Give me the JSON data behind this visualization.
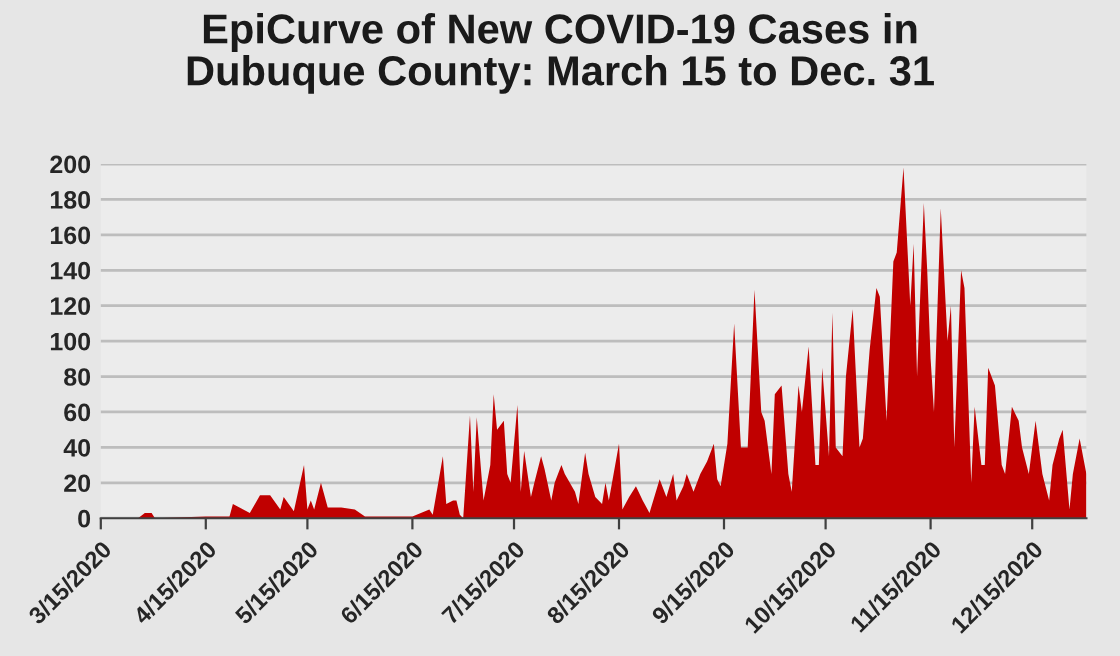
{
  "chart_data": {
    "type": "area",
    "title": "EpiCurve of New COVID-19 Cases in\nDubuque County: March 15 to Dec. 31",
    "series": [
      {
        "color": "#c00000",
        "x": [
          "2020-03-15",
          "2020-03-26",
          "2020-03-28",
          "2020-03-30",
          "2020-03-31",
          "2020-04-15",
          "2020-04-22",
          "2020-04-23",
          "2020-04-28",
          "2020-05-01",
          "2020-05-04",
          "2020-05-07",
          "2020-05-08",
          "2020-05-11",
          "2020-05-14",
          "2020-05-15",
          "2020-05-16",
          "2020-05-17",
          "2020-05-19",
          "2020-05-21",
          "2020-05-25",
          "2020-05-29",
          "2020-06-01",
          "2020-06-15",
          "2020-06-20",
          "2020-06-21",
          "2020-06-24",
          "2020-06-25",
          "2020-06-27",
          "2020-06-28",
          "2020-06-29",
          "2020-06-30",
          "2020-07-02",
          "2020-07-03",
          "2020-07-04",
          "2020-07-06",
          "2020-07-08",
          "2020-07-09",
          "2020-07-10",
          "2020-07-12",
          "2020-07-13",
          "2020-07-14",
          "2020-07-16",
          "2020-07-17",
          "2020-07-18",
          "2020-07-20",
          "2020-07-21",
          "2020-07-23",
          "2020-07-24",
          "2020-07-26",
          "2020-07-27",
          "2020-07-29",
          "2020-07-30",
          "2020-08-02",
          "2020-08-03",
          "2020-08-05",
          "2020-08-06",
          "2020-08-08",
          "2020-08-10",
          "2020-08-11",
          "2020-08-12",
          "2020-08-15",
          "2020-08-16",
          "2020-08-18",
          "2020-08-20",
          "2020-08-22",
          "2020-08-24",
          "2020-08-27",
          "2020-08-29",
          "2020-08-31",
          "2020-09-01",
          "2020-09-03",
          "2020-09-04",
          "2020-09-06",
          "2020-09-08",
          "2020-09-10",
          "2020-09-12",
          "2020-09-13",
          "2020-09-14",
          "2020-09-16",
          "2020-09-18",
          "2020-09-20",
          "2020-09-22",
          "2020-09-24",
          "2020-09-26",
          "2020-09-27",
          "2020-09-29",
          "2020-09-30",
          "2020-10-02",
          "2020-10-04",
          "2020-10-05",
          "2020-10-07",
          "2020-10-08",
          "2020-10-10",
          "2020-10-12",
          "2020-10-13",
          "2020-10-14",
          "2020-10-16",
          "2020-10-17",
          "2020-10-18",
          "2020-10-20",
          "2020-10-21",
          "2020-10-23",
          "2020-10-25",
          "2020-10-26",
          "2020-10-28",
          "2020-10-30",
          "2020-10-31",
          "2020-11-02",
          "2020-11-04",
          "2020-11-05",
          "2020-11-07",
          "2020-11-09",
          "2020-11-10",
          "2020-11-11",
          "2020-11-13",
          "2020-11-14",
          "2020-11-15",
          "2020-11-16",
          "2020-11-18",
          "2020-11-20",
          "2020-11-21",
          "2020-11-22",
          "2020-11-24",
          "2020-11-25",
          "2020-11-27",
          "2020-11-28",
          "2020-11-30",
          "2020-12-01",
          "2020-12-02",
          "2020-12-04",
          "2020-12-06",
          "2020-12-07",
          "2020-12-09",
          "2020-12-11",
          "2020-12-12",
          "2020-12-14",
          "2020-12-16",
          "2020-12-18",
          "2020-12-20",
          "2020-12-21",
          "2020-12-23",
          "2020-12-24",
          "2020-12-26",
          "2020-12-27",
          "2020-12-29",
          "2020-12-31"
        ],
        "values": [
          0,
          0,
          3,
          3,
          0,
          1,
          1,
          8,
          3,
          13,
          13,
          5,
          12,
          4,
          30,
          5,
          10,
          5,
          20,
          6,
          6,
          5,
          1,
          1,
          5,
          2,
          35,
          8,
          10,
          10,
          2,
          0,
          58,
          15,
          57,
          10,
          30,
          70,
          50,
          55,
          25,
          20,
          64,
          15,
          38,
          12,
          20,
          35,
          28,
          10,
          20,
          30,
          25,
          15,
          8,
          37,
          25,
          12,
          8,
          20,
          10,
          42,
          5,
          12,
          18,
          10,
          3,
          22,
          12,
          25,
          10,
          18,
          25,
          15,
          25,
          32,
          42,
          22,
          18,
          42,
          110,
          40,
          40,
          129,
          60,
          55,
          25,
          70,
          75,
          25,
          15,
          75,
          60,
          97,
          30,
          30,
          85,
          35,
          116,
          40,
          35,
          80,
          118,
          40,
          45,
          95,
          130,
          125,
          55,
          145,
          150,
          198,
          120,
          155,
          80,
          178,
          140,
          90,
          60,
          175,
          100,
          120,
          40,
          140,
          130,
          20,
          63,
          30,
          30,
          85,
          75,
          30,
          25,
          63,
          55,
          40,
          25,
          55,
          25,
          10,
          30,
          45,
          50,
          5,
          25,
          45,
          25
        ]
      }
    ],
    "xlim": [
      "2020-03-15",
      "2020-12-31"
    ],
    "xticks": [
      {
        "value": "2020-03-15",
        "label": "3/15/2020"
      },
      {
        "value": "2020-04-15",
        "label": "4/15/2020"
      },
      {
        "value": "2020-05-15",
        "label": "5/15/2020"
      },
      {
        "value": "2020-06-15",
        "label": "6/15/2020"
      },
      {
        "value": "2020-07-15",
        "label": "7/15/2020"
      },
      {
        "value": "2020-08-15",
        "label": "8/15/2020"
      },
      {
        "value": "2020-09-15",
        "label": "9/15/2020"
      },
      {
        "value": "2020-10-15",
        "label": "10/15/2020"
      },
      {
        "value": "2020-11-15",
        "label": "11/15/2020"
      },
      {
        "value": "2020-12-15",
        "label": "12/15/2020"
      }
    ],
    "ylim": [
      0,
      200
    ],
    "yticks": [
      0,
      20,
      40,
      60,
      80,
      100,
      120,
      140,
      160,
      180,
      200
    ],
    "grid": "y"
  }
}
